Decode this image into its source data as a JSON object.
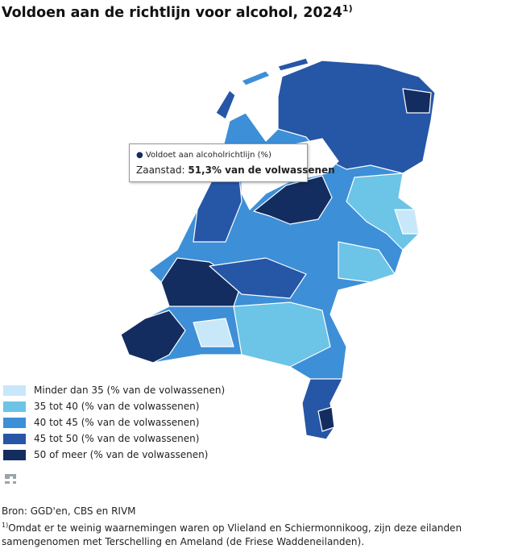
{
  "header": {
    "title": "Voldoen aan de richtlijn voor alcohol, 2024",
    "title_note": "1)"
  },
  "tooltip": {
    "heading": "Voldoet aan alcoholrichtlijn (%)",
    "region": "Zaanstad:",
    "value": "51,3% van de volwassenen"
  },
  "legend": {
    "items": [
      {
        "label": "Minder dan 35 (% van de volwassenen)",
        "color": "#c8e7f9"
      },
      {
        "label": "35 tot 40 (% van de volwassenen)",
        "color": "#6cc4e6"
      },
      {
        "label": "40 tot 45 (% van de volwassenen)",
        "color": "#3d8fd7"
      },
      {
        "label": "45 tot 50 (% van de volwassenen)",
        "color": "#2656a6"
      },
      {
        "label": "50 of meer (% van de volwassenen)",
        "color": "#132d60"
      }
    ]
  },
  "footer": {
    "source": "Bron: GGD'en, CBS en RIVM",
    "note_mark": "1)",
    "note": "Omdat er te weinig waarnemingen waren op Vlieland en Schiermonnikoog, zijn deze eilanden samengenomen met Terschelling en Ameland (de Friese Waddeneilanden)."
  }
}
